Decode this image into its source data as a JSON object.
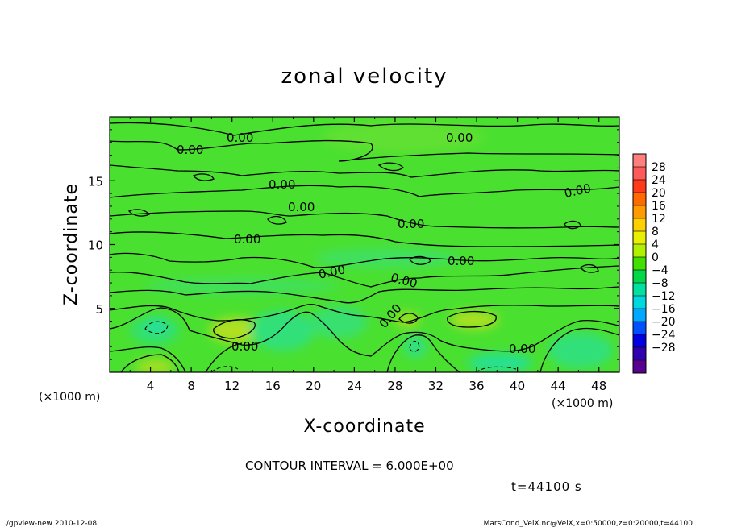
{
  "chart_data": {
    "type": "heatmap",
    "title": "zonal velocity",
    "xlabel": "X-coordinate",
    "ylabel": "Z-coordinate",
    "x_units": "(×1000 m)",
    "y_units": "(×1000 m)",
    "x_ticks": [
      "4",
      "8",
      "12",
      "16",
      "20",
      "24",
      "28",
      "32",
      "36",
      "40",
      "44",
      "48"
    ],
    "y_ticks": [
      "5",
      "10",
      "15"
    ],
    "xlim": [
      0,
      50
    ],
    "ylim": [
      0,
      20
    ],
    "contour_label": "0.00",
    "contour_interval": "CONTOUR INTERVAL = 6.000E+00",
    "time_label": "t=44100 s",
    "colorbar": {
      "labels": [
        "28",
        "24",
        "20",
        "16",
        "12",
        "8",
        "4",
        "0",
        "−4",
        "−8",
        "−12",
        "−16",
        "−20",
        "−24",
        "−28"
      ],
      "colors": [
        "#ff7f7f",
        "#ff5a5a",
        "#ff3a1a",
        "#ff6a00",
        "#ff9a00",
        "#ffd000",
        "#e8f000",
        "#b0f000",
        "#40e000",
        "#00d84a",
        "#00e0a0",
        "#00d8e0",
        "#00a8ff",
        "#0050ff",
        "#0000e0",
        "#3000b0",
        "#580090"
      ]
    },
    "background_field": "#4ae030"
  },
  "footer": {
    "left": "./gpview-new  2010-12-08",
    "right": "MarsCond_VelX.nc@VelX,x=0:50000,z=0:20000,t=44100"
  }
}
